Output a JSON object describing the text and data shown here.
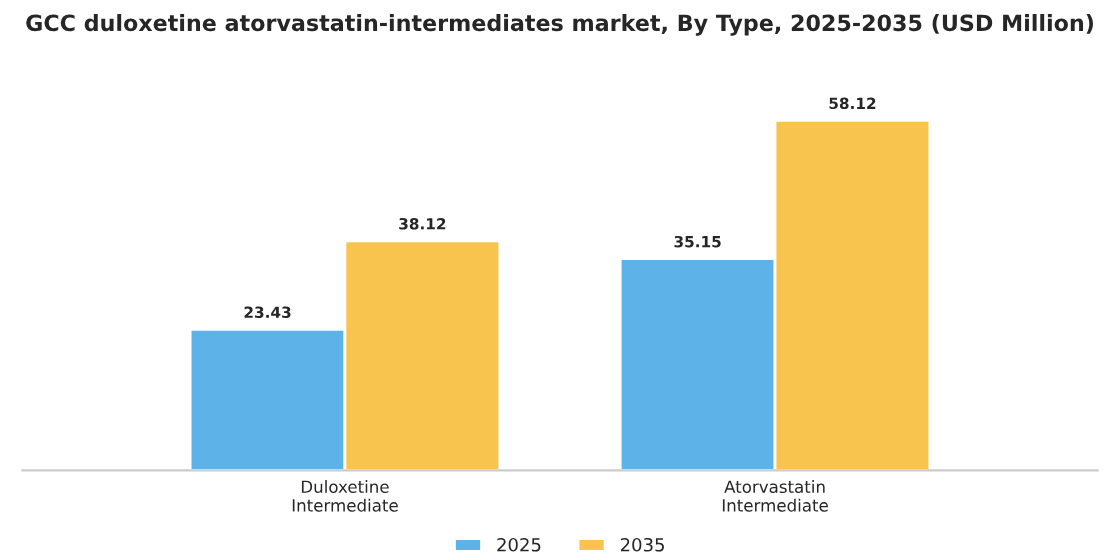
{
  "chart_data": {
    "type": "bar",
    "title": "GCC duloxetine atorvastatin-intermediates market, By Type, 2025-2035 (USD Million)",
    "categories": [
      "Duloxetine\nIntermediate",
      "Atorvastatin\nIntermediate"
    ],
    "series": [
      {
        "name": "2025",
        "color": "#5db3e8",
        "values": [
          23.43,
          35.15
        ]
      },
      {
        "name": "2035",
        "color": "#f9c44e",
        "values": [
          38.12,
          58.12
        ]
      }
    ],
    "data_labels": true,
    "legend": "bottom",
    "grid": false,
    "tick_labels": "x"
  }
}
